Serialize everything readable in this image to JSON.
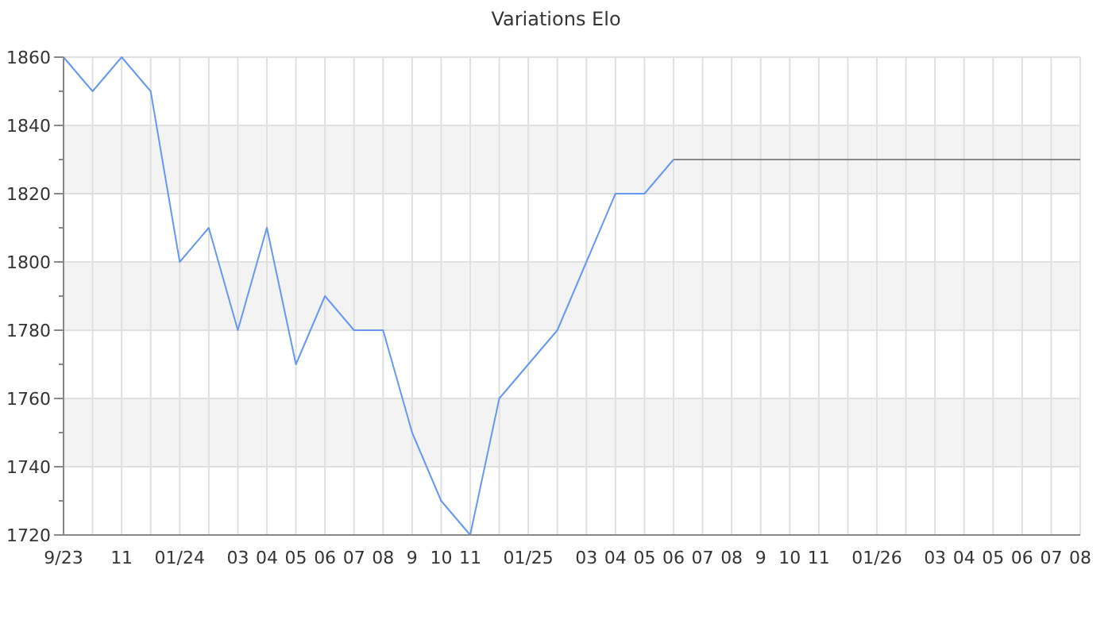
{
  "chart_data": {
    "type": "line",
    "title": "Variations Elo",
    "categories": [
      "9/23",
      null,
      "11",
      null,
      "01/24",
      null,
      "03",
      "04",
      "05",
      "06",
      "07",
      "08",
      "9",
      "10",
      "11",
      null,
      "01/25",
      null,
      "03",
      "04",
      "05",
      "06",
      "07",
      "08",
      "9",
      "10",
      "11",
      null,
      "01/26",
      null,
      "03",
      "04",
      "05",
      "06",
      "07",
      "08"
    ],
    "series": [
      {
        "color": "#6699ee",
        "values": [
          1860,
          1850,
          1860,
          1850,
          1800,
          1810,
          1780,
          1810,
          1770,
          1790,
          1780,
          1780,
          1750,
          1730,
          1720,
          1760,
          1770,
          1780,
          1800,
          1820,
          1820,
          1830,
          null,
          null,
          null,
          null,
          null,
          null,
          null,
          null,
          null,
          null,
          null,
          null,
          null,
          null
        ]
      },
      {
        "color": "#888888",
        "values": [
          null,
          null,
          null,
          null,
          null,
          null,
          null,
          null,
          null,
          null,
          null,
          null,
          null,
          null,
          null,
          null,
          null,
          null,
          null,
          null,
          null,
          1830,
          1830,
          1830,
          1830,
          1830,
          1830,
          1830,
          1830,
          1830,
          1830,
          1830,
          1830,
          1830,
          1830,
          1830
        ]
      }
    ],
    "ylim": [
      1720,
      1860
    ],
    "yticks": [
      1720,
      1740,
      1760,
      1780,
      1800,
      1820,
      1840,
      1860
    ],
    "bands": [
      {
        "axis": "y",
        "from": 1740,
        "to": 1760,
        "color": "#f3f3f3"
      },
      {
        "axis": "y",
        "from": 1780,
        "to": 1800,
        "color": "#f3f3f3"
      },
      {
        "axis": "y",
        "from": 1820,
        "to": 1840,
        "color": "#f3f3f3"
      }
    ],
    "grid": true,
    "marker": "none",
    "line_style": "solid"
  }
}
